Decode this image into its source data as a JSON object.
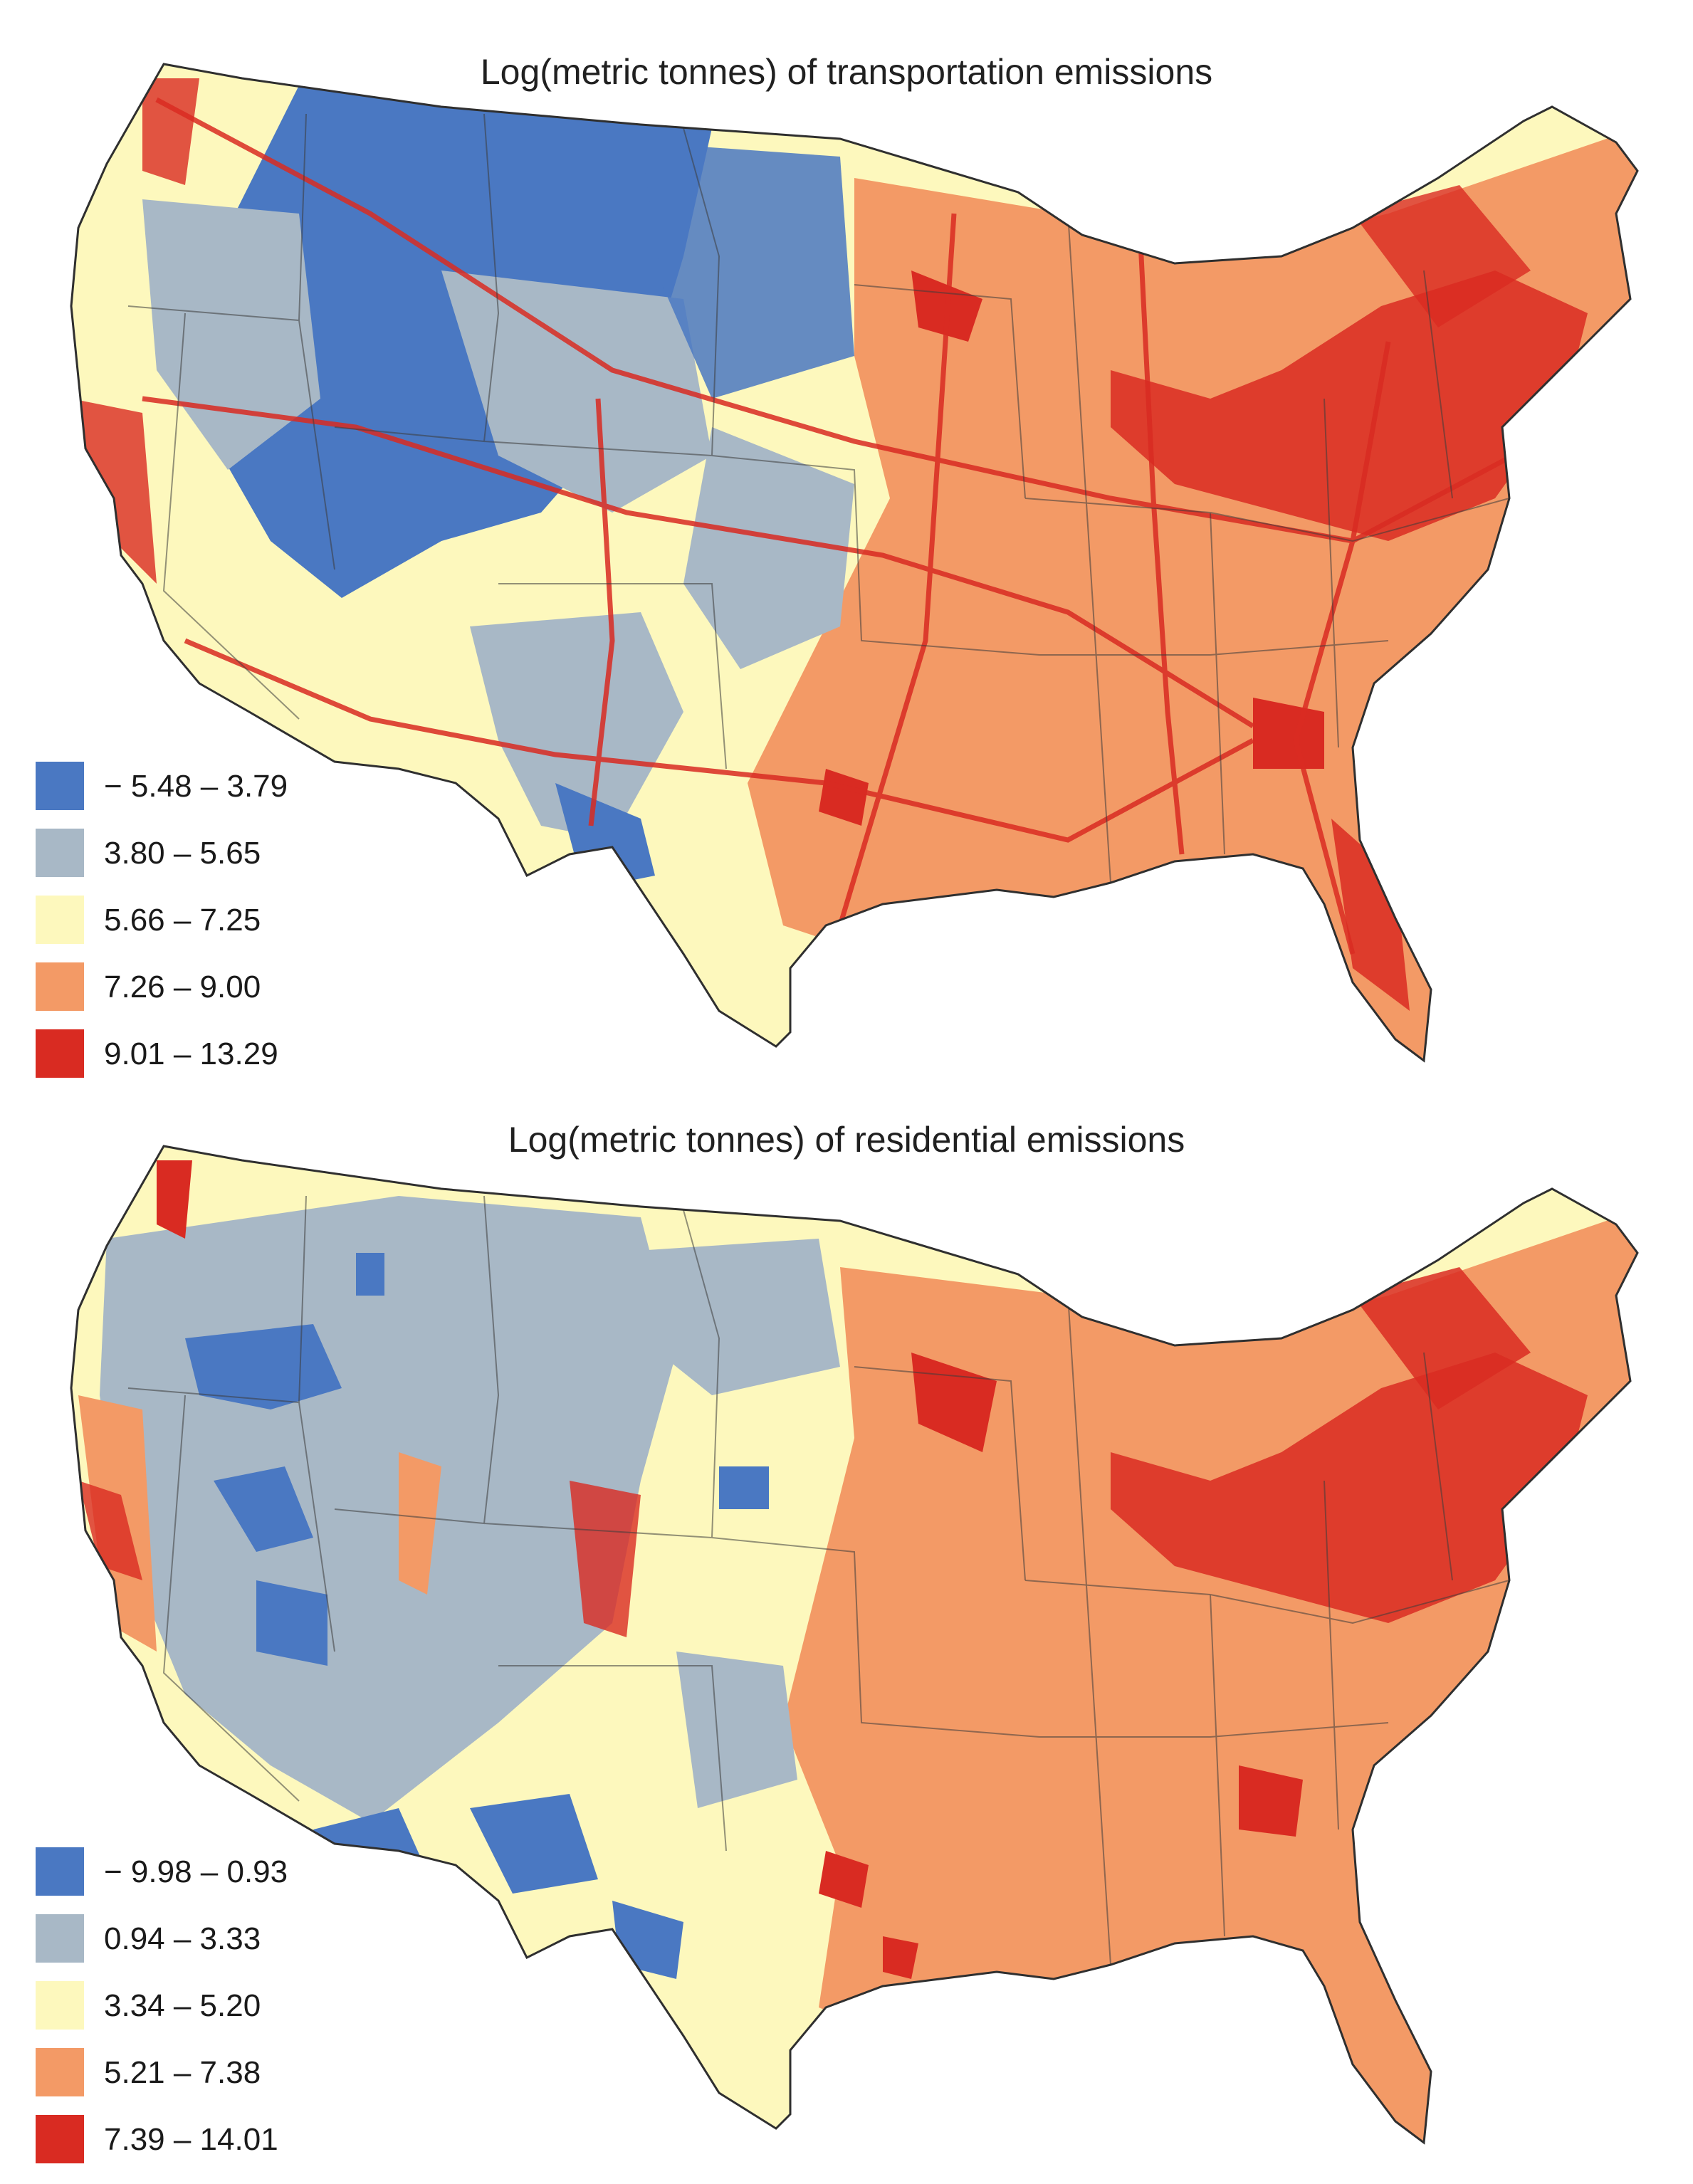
{
  "maps": [
    {
      "id": "transportation",
      "title": "Log(metric tonnes) of transportation emissions",
      "legend": [
        {
          "label": "− 5.48 – 3.79",
          "color": "#4a78c2"
        },
        {
          "label": "3.80 – 5.65",
          "color": "#a8b8c6"
        },
        {
          "label": "5.66 – 7.25",
          "color": "#fdf8bd"
        },
        {
          "label": "7.26 – 9.00",
          "color": "#f39a66"
        },
        {
          "label": "9.01 – 13.29",
          "color": "#d92b22"
        }
      ]
    },
    {
      "id": "residential",
      "title": "Log(metric tonnes) of residential emissions",
      "legend": [
        {
          "label": "− 9.98 – 0.93",
          "color": "#4a78c2"
        },
        {
          "label": "0.94 – 3.33",
          "color": "#a8b8c6"
        },
        {
          "label": "3.34 – 5.20",
          "color": "#fdf8bd"
        },
        {
          "label": "5.21 – 7.38",
          "color": "#f39a66"
        },
        {
          "label": "7.39 – 14.01",
          "color": "#d92b22"
        }
      ]
    }
  ]
}
